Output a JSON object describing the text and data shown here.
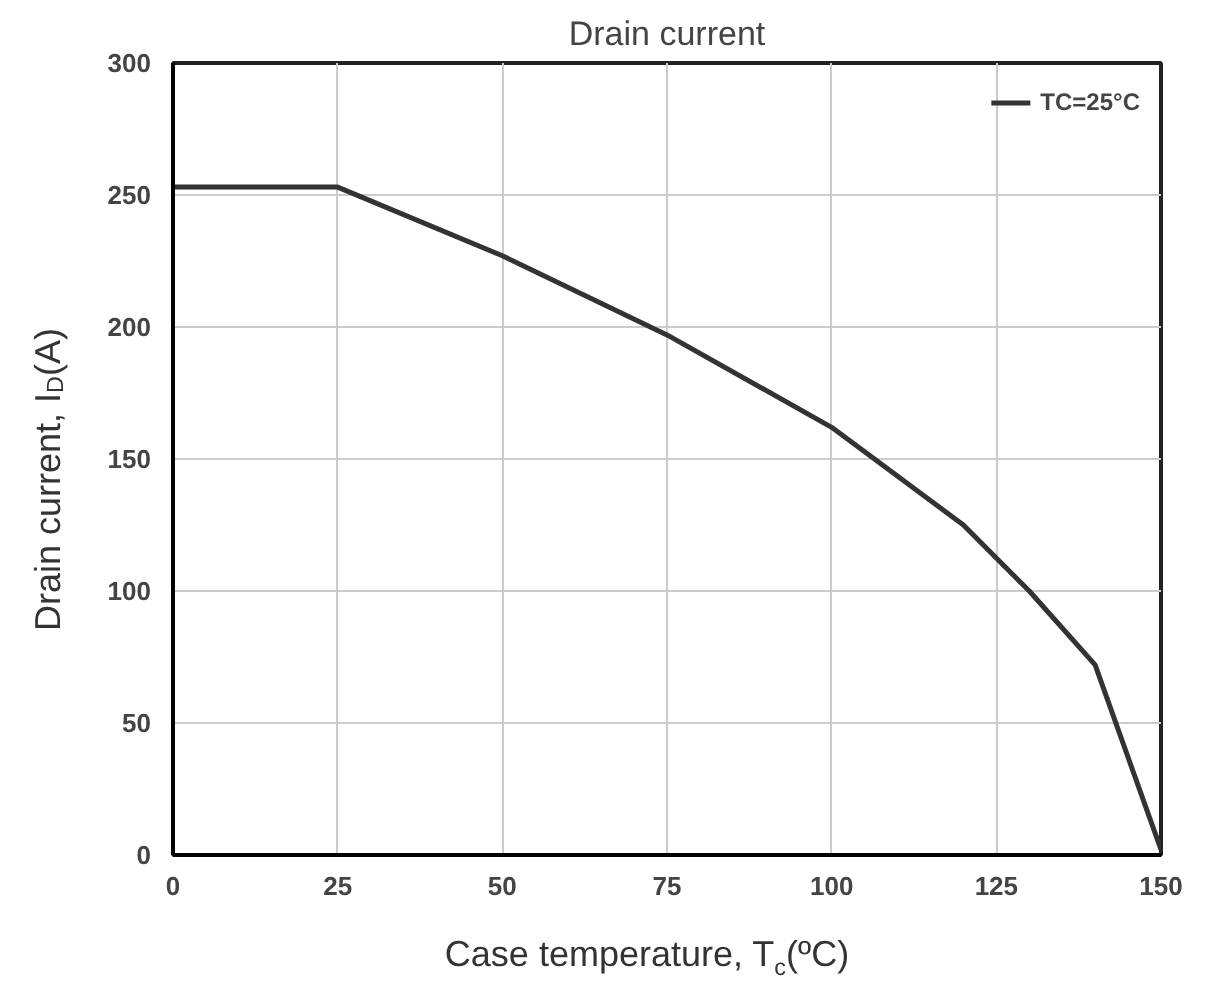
{
  "chart_data": {
    "type": "line",
    "title": "Drain current",
    "xlabel": "Case temperature, T$_{c}$(ºC)",
    "ylabel": "Drain current, I$_{D}$(A)",
    "x": [
      0,
      25,
      50,
      75,
      100,
      120,
      130,
      140,
      150
    ],
    "series": [
      {
        "name": "TC=25°C",
        "color": "#333333",
        "values": [
          253,
          253,
          227,
          197,
          162,
          125,
          100,
          72,
          2
        ]
      }
    ],
    "xlim": [
      0,
      150
    ],
    "xticks": [
      0,
      25,
      50,
      75,
      100,
      125,
      150
    ],
    "ylim": [
      0,
      300
    ],
    "yticks": [
      0,
      50,
      100,
      150,
      200,
      250,
      300
    ],
    "grid": true,
    "legend": "top right",
    "marker": "none",
    "line_style": "solid"
  }
}
